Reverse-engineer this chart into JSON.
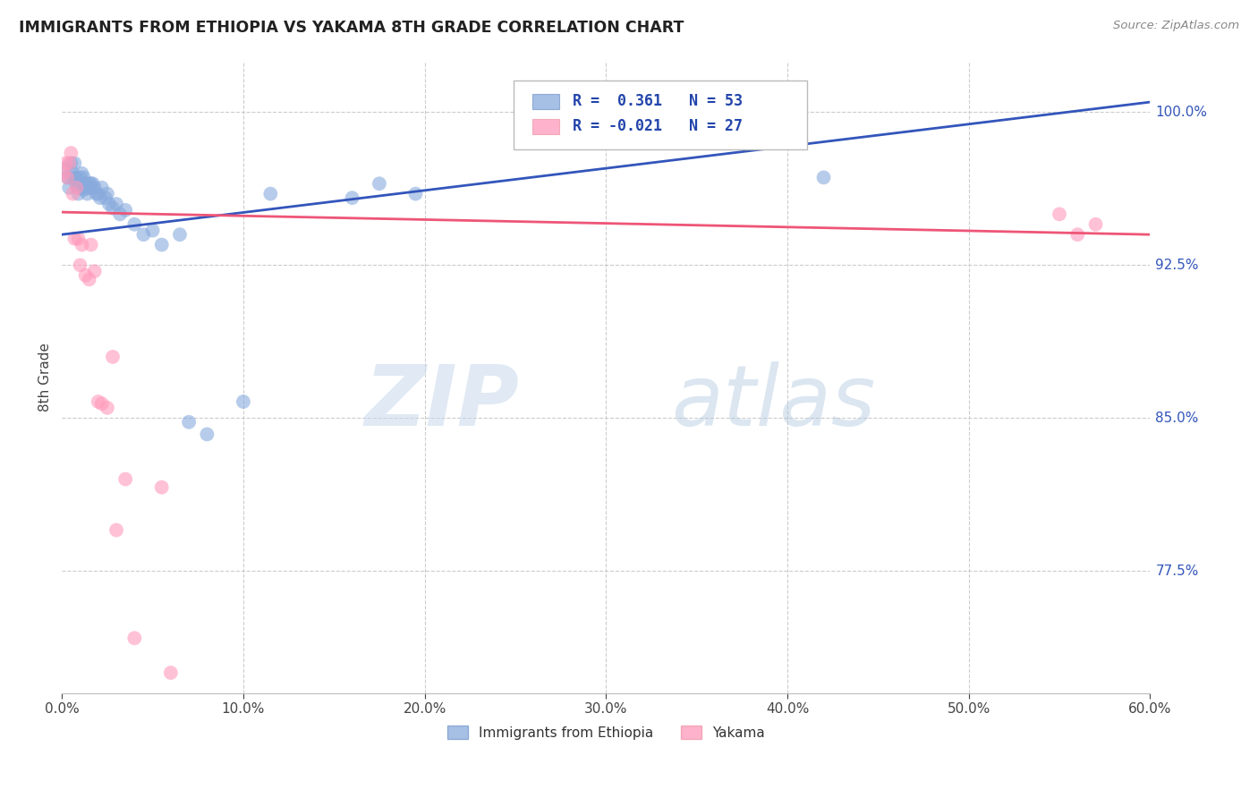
{
  "title": "IMMIGRANTS FROM ETHIOPIA VS YAKAMA 8TH GRADE CORRELATION CHART",
  "source": "Source: ZipAtlas.com",
  "ylabel_label": "8th Grade",
  "xlim": [
    0.0,
    0.6
  ],
  "ylim": [
    0.715,
    1.025
  ],
  "legend_label1": "Immigrants from Ethiopia",
  "legend_label2": "Yakama",
  "R_blue": 0.361,
  "N_blue": 53,
  "R_pink": -0.021,
  "N_pink": 27,
  "blue_color": "#88AADD",
  "pink_color": "#FF99BB",
  "blue_line_color": "#3355BB",
  "pink_line_color": "#EE5577",
  "watermark_zip": "ZIP",
  "watermark_atlas": "atlas",
  "right_ticks": [
    [
      0.775,
      "77.5%"
    ],
    [
      0.85,
      "85.0%"
    ],
    [
      0.925,
      "92.5%"
    ],
    [
      1.0,
      "100.0%"
    ]
  ],
  "x_tick_vals": [
    0.0,
    0.1,
    0.2,
    0.3,
    0.4,
    0.5,
    0.6
  ],
  "x_tick_labels": [
    "0.0%",
    "10.0%",
    "20.0%",
    "30.0%",
    "40.0%",
    "50.0%",
    "60.0%"
  ],
  "blue_scatter_x": [
    0.001,
    0.003,
    0.004,
    0.005,
    0.005,
    0.006,
    0.007,
    0.007,
    0.008,
    0.008,
    0.009,
    0.009,
    0.01,
    0.01,
    0.011,
    0.011,
    0.012,
    0.012,
    0.013,
    0.013,
    0.014,
    0.014,
    0.015,
    0.015,
    0.016,
    0.016,
    0.017,
    0.018,
    0.019,
    0.02,
    0.021,
    0.022,
    0.024,
    0.025,
    0.026,
    0.028,
    0.03,
    0.032,
    0.035,
    0.04,
    0.045,
    0.05,
    0.055,
    0.065,
    0.07,
    0.08,
    0.1,
    0.115,
    0.16,
    0.175,
    0.195,
    0.38,
    0.42
  ],
  "blue_scatter_y": [
    0.972,
    0.968,
    0.963,
    0.975,
    0.968,
    0.97,
    0.968,
    0.975,
    0.965,
    0.968,
    0.963,
    0.96,
    0.963,
    0.968,
    0.965,
    0.97,
    0.962,
    0.968,
    0.963,
    0.965,
    0.96,
    0.963,
    0.963,
    0.965,
    0.963,
    0.965,
    0.965,
    0.963,
    0.96,
    0.96,
    0.958,
    0.963,
    0.958,
    0.96,
    0.955,
    0.953,
    0.955,
    0.95,
    0.952,
    0.945,
    0.94,
    0.942,
    0.935,
    0.94,
    0.848,
    0.842,
    0.858,
    0.96,
    0.958,
    0.965,
    0.96,
    0.985,
    0.968
  ],
  "pink_scatter_x": [
    0.001,
    0.002,
    0.003,
    0.004,
    0.005,
    0.006,
    0.007,
    0.008,
    0.009,
    0.01,
    0.011,
    0.013,
    0.015,
    0.016,
    0.018,
    0.02,
    0.022,
    0.025,
    0.028,
    0.03,
    0.035,
    0.04,
    0.055,
    0.06,
    0.55,
    0.56,
    0.57
  ],
  "pink_scatter_y": [
    0.97,
    0.975,
    0.968,
    0.975,
    0.98,
    0.96,
    0.938,
    0.963,
    0.938,
    0.925,
    0.935,
    0.92,
    0.918,
    0.935,
    0.922,
    0.858,
    0.857,
    0.855,
    0.88,
    0.795,
    0.82,
    0.742,
    0.816,
    0.725,
    0.95,
    0.94,
    0.945
  ],
  "blue_trendline_x": [
    0.0,
    0.6
  ],
  "blue_trendline_y": [
    0.94,
    1.005
  ],
  "pink_trendline_x": [
    0.0,
    0.6
  ],
  "pink_trendline_y": [
    0.951,
    0.94
  ]
}
